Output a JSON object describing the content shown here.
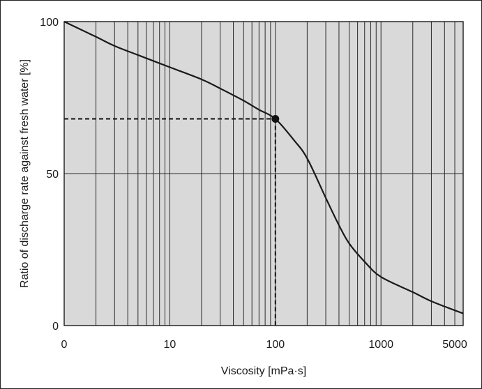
{
  "chart_data": {
    "type": "line",
    "xlabel": "Viscosity [mPa·s]",
    "ylabel": "Ratio of discharge rate against fresh water [%]",
    "x_scale": "log",
    "xlim": [
      1,
      6000
    ],
    "ylim": [
      0,
      100
    ],
    "x_ticks": [
      {
        "value": 1,
        "label": "0"
      },
      {
        "value": 10,
        "label": "10"
      },
      {
        "value": 100,
        "label": "100"
      },
      {
        "value": 1000,
        "label": "1000"
      },
      {
        "value": 5000,
        "label": "5000"
      }
    ],
    "y_ticks": [
      {
        "value": 0,
        "label": "0"
      },
      {
        "value": 50,
        "label": "50"
      },
      {
        "value": 100,
        "label": "100"
      }
    ],
    "grid": true,
    "plot_background": "#d9d9d9",
    "line_color": "#1a1a1a",
    "series": [
      {
        "x": [
          1,
          2,
          3,
          5,
          10,
          20,
          30,
          50,
          70,
          100,
          150,
          200,
          300,
          400,
          500,
          700,
          1000,
          2000,
          3000,
          5000,
          6000
        ],
        "y": [
          100,
          95,
          92,
          89,
          85,
          81,
          78,
          74,
          71,
          68,
          61,
          55,
          42,
          33,
          27,
          21,
          16,
          11,
          8,
          5,
          4
        ]
      }
    ],
    "highlight_point": {
      "x": 100,
      "y": 68
    }
  }
}
